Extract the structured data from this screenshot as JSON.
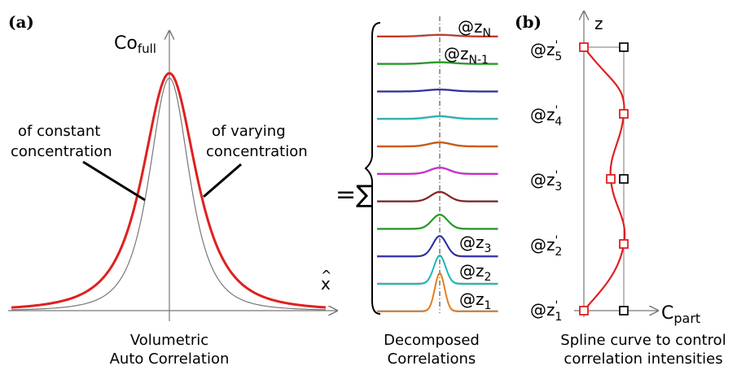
{
  "panel_a": {
    "label": "(a)",
    "y_axis_main": "Co",
    "y_axis_sub": "full",
    "x_axis": "x",
    "x_axis_hat": "^",
    "annotation_left_line1": "of constant",
    "annotation_left_line2": "concentration",
    "annotation_right_line1": "of varying",
    "annotation_right_line2": "concentration",
    "caption_line1": "Volumetric",
    "caption_line2": "Auto Correlation"
  },
  "decomposed": {
    "equals_sum": "=∑",
    "labels": [
      {
        "main": "@z",
        "sub": "N"
      },
      {
        "main": "@z",
        "sub": "N-1"
      },
      {
        "main": "@z",
        "sub": "3"
      },
      {
        "main": "@z",
        "sub": "2"
      },
      {
        "main": "@z",
        "sub": "1"
      }
    ],
    "curve_colors": [
      "#c0392b",
      "#1e9e1e",
      "#2b2ba8",
      "#1fb8b8",
      "#d35400",
      "#d324d3",
      "#8b1a1a",
      "#1e9e1e",
      "#2b2ba8",
      "#1fb8b8",
      "#e67e22"
    ],
    "caption_line1": "Decomposed",
    "caption_line2": "Correlations"
  },
  "panel_b": {
    "label": "(b)",
    "z_axis": "z",
    "c_axis_main": "C",
    "c_axis_sub": "part",
    "levels": [
      {
        "main": "@z",
        "prime": "'",
        "sub": "5"
      },
      {
        "main": "@z",
        "prime": "'",
        "sub": "4"
      },
      {
        "main": "@z",
        "prime": "'",
        "sub": "3"
      },
      {
        "main": "@z",
        "prime": "'",
        "sub": "2"
      },
      {
        "main": "@z",
        "prime": "'",
        "sub": "1"
      }
    ],
    "spline_color": "#e02020",
    "caption_line1": "Spline curve to control",
    "caption_line2": "correlation intensities"
  }
}
